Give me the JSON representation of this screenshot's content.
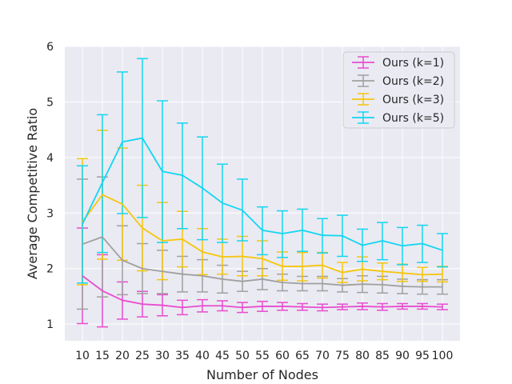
{
  "chart_data": {
    "type": "line",
    "title": "",
    "xlabel": "Number of Nodes",
    "ylabel": "Average Competitive Ratio",
    "x": [
      10,
      15,
      20,
      25,
      30,
      35,
      40,
      45,
      50,
      55,
      60,
      65,
      70,
      75,
      80,
      85,
      90,
      95,
      100
    ],
    "x_tick_labels": [
      "10",
      "15",
      "20",
      "25",
      "30",
      "35",
      "40",
      "45",
      "50",
      "55",
      "60",
      "65",
      "70",
      "75",
      "80",
      "85",
      "90",
      "95",
      "100"
    ],
    "ylim": [
      0.7,
      6.0
    ],
    "y_ticks": [
      1,
      2,
      3,
      4,
      5,
      6
    ],
    "y_tick_labels": [
      "1",
      "2",
      "3",
      "4",
      "5",
      "6"
    ],
    "grid": true,
    "legend_position": "top-right",
    "series": [
      {
        "name": "Ours (k=1)",
        "color": "#e84ccf",
        "values": [
          1.87,
          1.6,
          1.43,
          1.36,
          1.34,
          1.3,
          1.33,
          1.33,
          1.3,
          1.32,
          1.32,
          1.31,
          1.3,
          1.31,
          1.32,
          1.31,
          1.32,
          1.32,
          1.31
        ],
        "lower": [
          1.01,
          0.95,
          1.09,
          1.13,
          1.15,
          1.17,
          1.22,
          1.24,
          1.21,
          1.23,
          1.25,
          1.25,
          1.24,
          1.26,
          1.26,
          1.25,
          1.27,
          1.27,
          1.26
        ],
        "upper": [
          2.73,
          2.25,
          1.76,
          1.59,
          1.53,
          1.43,
          1.44,
          1.42,
          1.39,
          1.41,
          1.39,
          1.37,
          1.36,
          1.36,
          1.38,
          1.37,
          1.37,
          1.37,
          1.36
        ]
      },
      {
        "name": "Ours (k=2)",
        "color": "#a0a0a0",
        "values": [
          2.44,
          2.57,
          2.15,
          2.0,
          1.95,
          1.9,
          1.87,
          1.81,
          1.77,
          1.81,
          1.75,
          1.73,
          1.73,
          1.7,
          1.72,
          1.71,
          1.68,
          1.67,
          1.67
        ],
        "lower": [
          1.27,
          1.49,
          1.53,
          1.55,
          1.55,
          1.58,
          1.58,
          1.56,
          1.59,
          1.62,
          1.6,
          1.6,
          1.6,
          1.58,
          1.57,
          1.56,
          1.55,
          1.54,
          1.54
        ],
        "upper": [
          3.61,
          3.65,
          2.77,
          2.45,
          2.33,
          2.22,
          2.16,
          2.06,
          1.95,
          2.0,
          1.9,
          1.86,
          1.86,
          1.82,
          1.87,
          1.86,
          1.81,
          1.8,
          1.8
        ]
      },
      {
        "name": "Ours (k=3)",
        "color": "#f5c60c",
        "values": [
          2.84,
          3.33,
          3.16,
          2.73,
          2.5,
          2.53,
          2.3,
          2.21,
          2.22,
          2.18,
          2.04,
          2.04,
          2.06,
          1.93,
          1.99,
          1.95,
          1.92,
          1.89,
          1.9
        ],
        "lower": [
          1.71,
          2.17,
          2.15,
          1.96,
          1.8,
          2.03,
          1.89,
          1.9,
          1.87,
          1.87,
          1.79,
          1.78,
          1.83,
          1.75,
          1.78,
          1.8,
          1.77,
          1.77,
          1.76
        ],
        "upper": [
          3.98,
          4.49,
          4.17,
          3.5,
          3.19,
          3.03,
          2.72,
          2.53,
          2.58,
          2.5,
          2.3,
          2.29,
          2.29,
          2.11,
          2.21,
          2.1,
          2.08,
          2.02,
          2.04
        ]
      },
      {
        "name": "Ours (k=5)",
        "color": "#12d6f2",
        "values": [
          2.8,
          3.55,
          4.28,
          4.35,
          3.75,
          3.68,
          3.45,
          3.18,
          3.05,
          2.69,
          2.63,
          2.69,
          2.6,
          2.59,
          2.42,
          2.5,
          2.41,
          2.45,
          2.33
        ],
        "lower": [
          1.74,
          2.29,
          2.99,
          2.92,
          2.47,
          2.72,
          2.52,
          2.47,
          2.5,
          2.25,
          2.2,
          2.31,
          2.28,
          2.22,
          2.13,
          2.16,
          2.07,
          2.11,
          2.03
        ],
        "upper": [
          3.85,
          4.77,
          5.54,
          5.78,
          5.02,
          4.62,
          4.37,
          3.88,
          3.61,
          3.11,
          3.04,
          3.07,
          2.9,
          2.96,
          2.71,
          2.83,
          2.74,
          2.78,
          2.63
        ]
      }
    ]
  }
}
